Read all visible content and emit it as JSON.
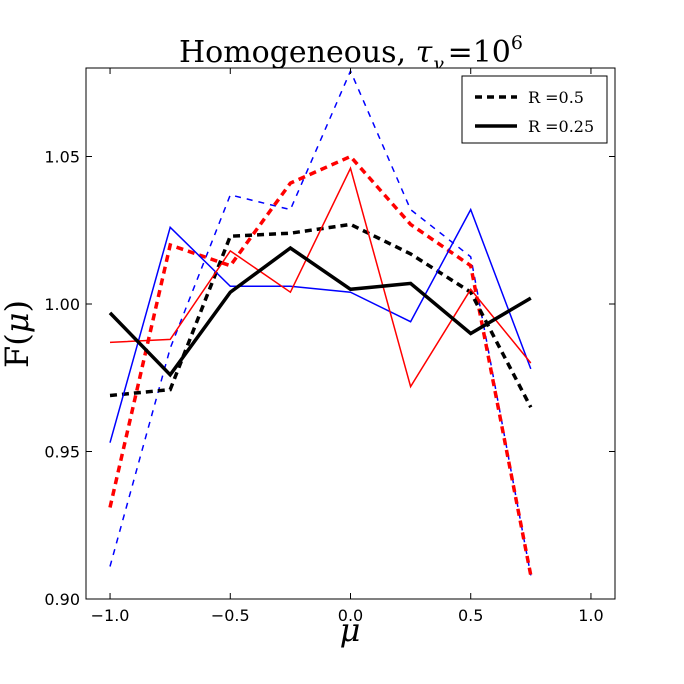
{
  "chart_data": {
    "type": "line",
    "title": {
      "text": "Homogeneous, ",
      "symbol": "τ",
      "subscript": "γ",
      "equals": "=",
      "base": "10",
      "exponent": "6"
    },
    "xlabel": "μ",
    "ylabel": {
      "text": "F(",
      "symbol": "μ",
      "close": ")"
    },
    "xlim": [
      -1.1,
      1.1
    ],
    "ylim": [
      0.9,
      1.08
    ],
    "xticks": [
      -1.0,
      -0.5,
      0.0,
      0.5,
      1.0
    ],
    "xtick_labels": [
      "−1.0",
      "−0.5",
      "0.0",
      "0.5",
      "1.0"
    ],
    "yticks": [
      0.9,
      0.95,
      1.0,
      1.05
    ],
    "ytick_labels": [
      "0.90",
      "0.95",
      "1.00",
      "1.05"
    ],
    "legend": {
      "placement": "top-right",
      "entries": [
        {
          "label": "R =0.5",
          "style": "dashed",
          "color": "#000000"
        },
        {
          "label": "R =0.25",
          "style": "solid",
          "color": "#000000"
        }
      ]
    },
    "x": [
      -1.0,
      -0.75,
      -0.5,
      -0.25,
      0.0,
      0.25,
      0.5,
      0.75
    ],
    "series": [
      {
        "color": "#0000ff",
        "style": "dashed",
        "weight": "thin",
        "values": [
          0.911,
          0.985,
          1.037,
          1.032,
          1.079,
          1.032,
          1.016,
          0.908
        ]
      },
      {
        "color": "#ff0000",
        "style": "dashed",
        "weight": "thick",
        "values": [
          0.931,
          1.02,
          1.013,
          1.041,
          1.05,
          1.027,
          1.013,
          0.908
        ]
      },
      {
        "color": "#000000",
        "style": "dashed",
        "weight": "thick",
        "values": [
          0.969,
          0.971,
          1.023,
          1.024,
          1.027,
          1.017,
          1.004,
          0.965
        ]
      },
      {
        "color": "#0000ff",
        "style": "solid",
        "weight": "thin",
        "values": [
          0.953,
          1.026,
          1.006,
          1.006,
          1.004,
          0.994,
          1.032,
          0.978
        ]
      },
      {
        "color": "#ff0000",
        "style": "solid",
        "weight": "thin",
        "values": [
          0.987,
          0.988,
          1.018,
          1.004,
          1.046,
          0.972,
          1.005,
          0.98
        ]
      },
      {
        "color": "#000000",
        "style": "solid",
        "weight": "thick",
        "values": [
          0.997,
          0.976,
          1.004,
          1.019,
          1.005,
          1.007,
          0.99,
          1.002
        ]
      }
    ]
  }
}
